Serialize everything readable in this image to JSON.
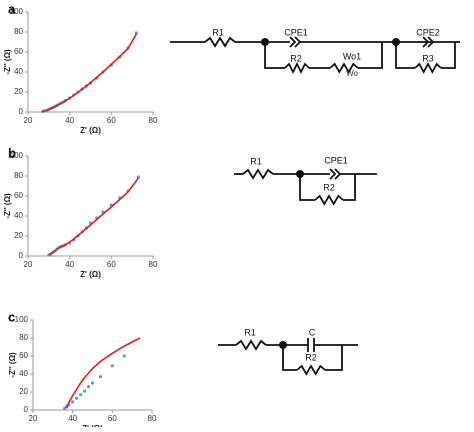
{
  "chart_data": [
    {
      "type": "scatter",
      "label": "a",
      "xlabel": "Z' (Ω)",
      "ylabel": "-Z'' (Ω)",
      "x": [
        27,
        28,
        29,
        30,
        31,
        32,
        33,
        34,
        35,
        36,
        37,
        38,
        40,
        42,
        44,
        46,
        48,
        50,
        53,
        56,
        60,
        64,
        68,
        72
      ],
      "series": [
        {
          "kind": "markers",
          "color": "#5b9bd5",
          "values": [
            0.5,
            1,
            1.5,
            2.5,
            3.5,
            4.5,
            5.5,
            6.5,
            8,
            9,
            10,
            11.5,
            14,
            17,
            20,
            23,
            26,
            29,
            34,
            40,
            47,
            55,
            64,
            79
          ]
        },
        {
          "kind": "line",
          "color": "#e0201b",
          "values": [
            0.5,
            1,
            1.8,
            2.6,
            3.5,
            4.5,
            5.5,
            6.6,
            7.7,
            8.8,
            10,
            11.2,
            13.8,
            16.6,
            19.6,
            22.8,
            26,
            29.4,
            34.6,
            40,
            47.6,
            55.4,
            63.5,
            78
          ]
        }
      ],
      "xlim": [
        20,
        80
      ],
      "xticks": [
        20,
        40,
        60,
        80
      ],
      "ylim": [
        0,
        100
      ],
      "yticks": [
        0,
        20,
        40,
        60,
        80,
        100
      ]
    },
    {
      "type": "scatter",
      "label": "b",
      "xlabel": "Z' (Ω)",
      "ylabel": "-Z'' (Ω)",
      "x": [
        30,
        31,
        32,
        33,
        34,
        35,
        36,
        37,
        38,
        40,
        42,
        44,
        46,
        48,
        50,
        53,
        56,
        60,
        64,
        68,
        73
      ],
      "series": [
        {
          "kind": "markers",
          "color": "#5b9bd5",
          "values": [
            1,
            2,
            3.5,
            5,
            7,
            8.5,
            9.5,
            10,
            11,
            13,
            16,
            20,
            24,
            28,
            33,
            38,
            44,
            51,
            58,
            65,
            79
          ]
        },
        {
          "kind": "line",
          "color": "#e0201b",
          "values": [
            1,
            2.5,
            4,
            5.5,
            7,
            8.5,
            9.5,
            10.5,
            11.5,
            14,
            17,
            20.5,
            24,
            27.5,
            31,
            36.5,
            42,
            49,
            56.5,
            64,
            78
          ]
        }
      ],
      "xlim": [
        20,
        80
      ],
      "xticks": [
        20,
        40,
        60,
        80
      ],
      "ylim": [
        0,
        100
      ],
      "yticks": [
        0,
        20,
        40,
        60,
        80,
        100
      ]
    },
    {
      "type": "scatter",
      "label": "c",
      "xlabel": "Z' (Ω)",
      "ylabel": "-Z'' (Ω)",
      "x": [
        36,
        37,
        38,
        40,
        42,
        44,
        46,
        48,
        50,
        54,
        60,
        66,
        74
      ],
      "series": [
        {
          "kind": "markers",
          "color": "#5b9bd5",
          "values": [
            2,
            4,
            6,
            9,
            13,
            17,
            21,
            26,
            30,
            37,
            49,
            60,
            null
          ]
        },
        {
          "kind": "line",
          "color": "#e0201b",
          "values": [
            null,
            2,
            8,
            16,
            23,
            30,
            36,
            41,
            46,
            54,
            63,
            71,
            80
          ]
        }
      ],
      "xlim": [
        20,
        80
      ],
      "xticks": [
        20,
        40,
        60,
        80
      ],
      "ylim": [
        0,
        100
      ],
      "yticks": [
        0,
        20,
        40,
        60,
        80,
        100
      ]
    }
  ],
  "circuits": [
    {
      "labels": [
        "R1",
        "CPE1",
        "R2",
        "Wo1",
        "Wo",
        "CPE2",
        "R3"
      ]
    },
    {
      "labels": [
        "R1",
        "CPE1",
        "R2"
      ]
    },
    {
      "labels": [
        "R1",
        "C",
        "R2"
      ]
    }
  ]
}
